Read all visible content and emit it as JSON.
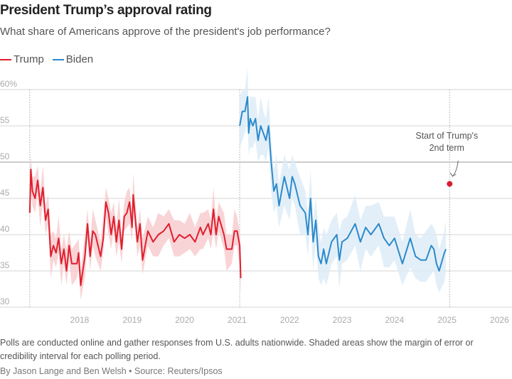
{
  "header": {
    "title": "President Trump’s approval rating",
    "subtitle": "What share of Americans approve of the president's job performance?"
  },
  "legend": [
    {
      "label": "Trump",
      "color": "#e01e2e"
    },
    {
      "label": "Biden",
      "color": "#2b8acb"
    }
  ],
  "chart_data": {
    "type": "line",
    "title": "President Trump’s approval rating",
    "xlabel": "",
    "ylabel": "",
    "xlim": [
      2017,
      2026.05
    ],
    "ylim": [
      30,
      60
    ],
    "grid": true,
    "legend_position": "top-left",
    "y_ticks": [
      "60%",
      "55",
      "50",
      "45",
      "40",
      "35",
      "30"
    ],
    "y_tick_values": [
      60,
      55,
      50,
      45,
      40,
      35,
      30
    ],
    "x_ticks": [
      "2018",
      "2019",
      "2020",
      "2021",
      "2022",
      "2023",
      "2024",
      "2025",
      "2026"
    ],
    "x_tick_values": [
      2018,
      2019,
      2020,
      2021,
      2022,
      2023,
      2024,
      2025,
      2026
    ],
    "term_start_lines": [
      2017.05,
      2021.05,
      2025.05
    ],
    "series": [
      {
        "name": "Trump",
        "color": "#e01e2e",
        "band_color": "#f7c9cc",
        "band_halfwidth": 2,
        "x": [
          2017.05,
          2017.07,
          2017.1,
          2017.15,
          2017.2,
          2017.25,
          2017.3,
          2017.35,
          2017.4,
          2017.45,
          2017.5,
          2017.55,
          2017.6,
          2017.65,
          2017.7,
          2017.75,
          2017.8,
          2017.85,
          2017.95,
          2017.98,
          2018.02,
          2018.1,
          2018.15,
          2018.2,
          2018.25,
          2018.3,
          2018.4,
          2018.45,
          2018.5,
          2018.55,
          2018.6,
          2018.65,
          2018.7,
          2018.75,
          2018.8,
          2018.85,
          2018.9,
          2018.95,
          2019.0,
          2019.02,
          2019.1,
          2019.15,
          2019.2,
          2019.3,
          2019.4,
          2019.5,
          2019.6,
          2019.7,
          2019.8,
          2019.9,
          2020.0,
          2020.1,
          2020.2,
          2020.3,
          2020.35,
          2020.45,
          2020.5,
          2020.55,
          2020.6,
          2020.65,
          2020.75,
          2020.8,
          2020.9,
          2020.95,
          2021.0,
          2021.05,
          2021.07
        ],
        "y": [
          43,
          49,
          46,
          45,
          47.5,
          44,
          46.5,
          42,
          43.5,
          37,
          38.5,
          37.5,
          39.5,
          36,
          38,
          35,
          38.5,
          36,
          36,
          37.5,
          33,
          37,
          41.5,
          37,
          40.5,
          40,
          37,
          39.5,
          44.5,
          43,
          40,
          42.5,
          39,
          42,
          38,
          42.5,
          43,
          44.5,
          41,
          45.5,
          39,
          41.5,
          36.5,
          40.5,
          39,
          40,
          40.5,
          41.5,
          39,
          40,
          39.5,
          40,
          39,
          41,
          40,
          41.5,
          40,
          43.5,
          40,
          42.5,
          40,
          38,
          38,
          40.5,
          40.5,
          38.5,
          34
        ]
      },
      {
        "name": "Biden",
        "color": "#2b8acb",
        "band_color": "#dcebf6",
        "band_halfwidth": 3,
        "x": [
          2021.05,
          2021.1,
          2021.15,
          2021.2,
          2021.22,
          2021.25,
          2021.3,
          2021.35,
          2021.4,
          2021.45,
          2021.5,
          2021.55,
          2021.6,
          2021.65,
          2021.7,
          2021.75,
          2021.8,
          2021.9,
          2022.0,
          2022.05,
          2022.1,
          2022.2,
          2022.3,
          2022.35,
          2022.4,
          2022.45,
          2022.5,
          2022.55,
          2022.6,
          2022.65,
          2022.7,
          2022.8,
          2022.9,
          2022.95,
          2023.0,
          2023.1,
          2023.25,
          2023.35,
          2023.45,
          2023.55,
          2023.7,
          2023.8,
          2023.9,
          2024.0,
          2024.15,
          2024.3,
          2024.4,
          2024.5,
          2024.6,
          2024.7,
          2024.75,
          2024.8,
          2024.85,
          2024.95,
          2024.98
        ],
        "y": [
          55,
          57,
          57,
          59,
          54,
          56,
          55,
          56,
          53,
          55,
          54,
          53,
          55,
          50,
          46,
          47,
          44,
          48,
          45,
          48,
          47,
          44,
          43,
          40,
          45,
          39,
          42,
          37,
          36,
          38,
          36,
          39,
          40,
          36.5,
          39,
          39.5,
          41.5,
          39,
          41,
          40,
          41.5,
          39.5,
          38.5,
          39.5,
          36,
          39.5,
          37,
          36.5,
          36.5,
          38.5,
          38,
          36,
          35,
          37.5,
          38
        ]
      }
    ],
    "points": [
      {
        "name": "Trump",
        "x": 2025.05,
        "y": 47,
        "color": "#d81e2e"
      }
    ],
    "annotations": [
      {
        "lines": [
          "Start of Trump's",
          "2nd term"
        ],
        "x": 2025.05
      }
    ]
  },
  "footer": {
    "note": "Polls are conducted online and gather responses from U.S. adults nationwide. Shaded areas show the margin of error or credibility interval for each polling period.",
    "byline": "By Jason Lange and Ben Welsh • Source: Reuters/Ipsos"
  }
}
